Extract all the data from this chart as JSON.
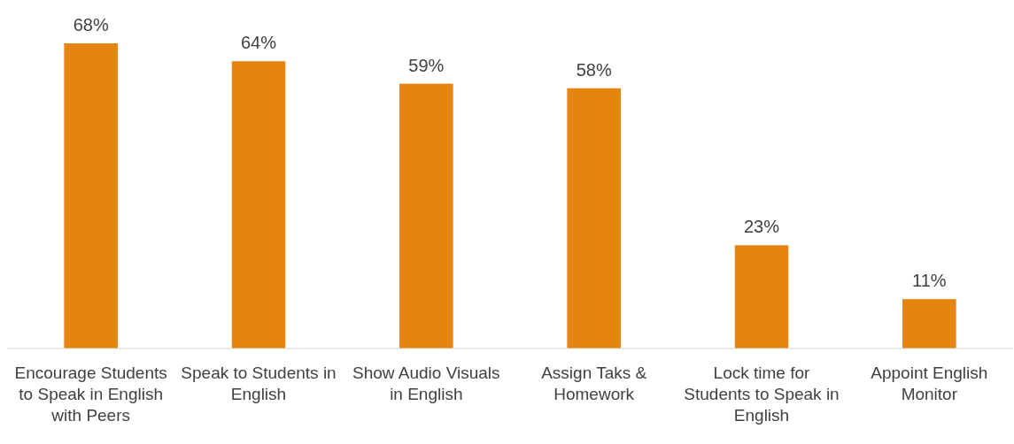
{
  "chart_data": {
    "type": "bar",
    "categories": [
      "Encourage Students to Speak in English with Peers",
      "Speak to Students in English",
      "Show Audio Visuals in English",
      "Assign Taks & Homework",
      "Lock time for Students to Speak in English",
      "Appoint English Monitor"
    ],
    "values": [
      68,
      64,
      59,
      58,
      23,
      11
    ],
    "value_labels": [
      "68%",
      "64%",
      "59%",
      "58%",
      "23%",
      "11%"
    ],
    "color": "#e58410"
  }
}
